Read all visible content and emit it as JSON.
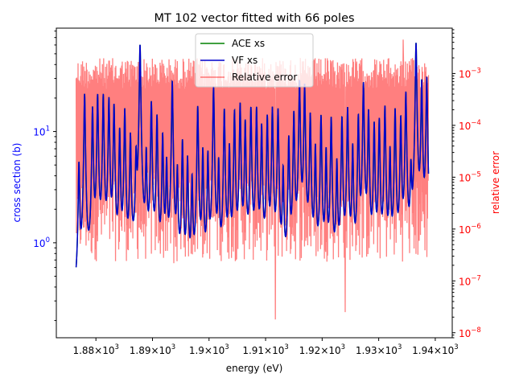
{
  "chart_data": {
    "type": "line",
    "title": "MT 102 vector fitted with 66 poles",
    "xlabel": "energy (eV)",
    "ylabel_left": "cross section (b)",
    "ylabel_right": "relative error",
    "xlim": [
      1873,
      1943
    ],
    "ylim_left": [
      0.14,
      85
    ],
    "ylim_right": [
      8e-09,
      0.0075
    ],
    "yscale_left": "log",
    "yscale_right": "log",
    "grid": false,
    "legend_position": "upper-center",
    "x_tick_values": [
      1880,
      1890,
      1900,
      1910,
      1920,
      1930,
      1940
    ],
    "x_tick_labels": [
      {
        "mant": "1.88",
        "exp": "3"
      },
      {
        "mant": "1.89",
        "exp": "3"
      },
      {
        "mant": "1.9",
        "exp": "3"
      },
      {
        "mant": "1.91",
        "exp": "3"
      },
      {
        "mant": "1.92",
        "exp": "3"
      },
      {
        "mant": "1.93",
        "exp": "3"
      },
      {
        "mant": "1.94",
        "exp": "3"
      }
    ],
    "y_left_tick_values": [
      1,
      10
    ],
    "y_left_tick_labels": [
      {
        "base": "10",
        "exp": "0"
      },
      {
        "base": "10",
        "exp": "1"
      }
    ],
    "y_right_tick_values": [
      1e-08,
      1e-07,
      1e-06,
      1e-05,
      0.0001,
      0.001
    ],
    "y_right_tick_labels": [
      {
        "base": "10",
        "exp": "−8"
      },
      {
        "base": "10",
        "exp": "−7"
      },
      {
        "base": "10",
        "exp": "−6"
      },
      {
        "base": "10",
        "exp": "−5"
      },
      {
        "base": "10",
        "exp": "−4"
      },
      {
        "base": "10",
        "exp": "−3"
      }
    ],
    "series": [
      {
        "name": "ACE xs",
        "axis": "left",
        "color": "#008000",
        "x_range": [
          1876.5,
          1938.8
        ],
        "baseline": 0.18,
        "resonances": [
          [
            1877.0,
            4.8
          ],
          [
            1878.0,
            21.5
          ],
          [
            1879.4,
            16.0
          ],
          [
            1880.3,
            21.0
          ],
          [
            1881.3,
            21.0
          ],
          [
            1882.3,
            19.5
          ],
          [
            1883.2,
            17.0
          ],
          [
            1884.2,
            10.0
          ],
          [
            1885.1,
            15.5
          ],
          [
            1886.1,
            9.0
          ],
          [
            1887.1,
            5.5
          ],
          [
            1887.8,
            60.0
          ],
          [
            1888.9,
            6.0
          ],
          [
            1889.8,
            18.0
          ],
          [
            1890.8,
            13.5
          ],
          [
            1891.8,
            9.0
          ],
          [
            1892.5,
            5.0
          ],
          [
            1893.5,
            28.0
          ],
          [
            1894.4,
            4.2
          ],
          [
            1895.3,
            8.0
          ],
          [
            1896.2,
            5.5
          ],
          [
            1897.0,
            3.5
          ],
          [
            1898.0,
            16.5
          ],
          [
            1898.9,
            6.5
          ],
          [
            1899.8,
            6.0
          ],
          [
            1900.8,
            25.0
          ],
          [
            1901.7,
            5.0
          ],
          [
            1902.7,
            15.5
          ],
          [
            1903.6,
            7.0
          ],
          [
            1904.5,
            15.0
          ],
          [
            1905.5,
            17.5
          ],
          [
            1906.4,
            12.0
          ],
          [
            1907.4,
            16.0
          ],
          [
            1908.4,
            16.0
          ],
          [
            1909.3,
            11.0
          ],
          [
            1910.3,
            13.5
          ],
          [
            1911.2,
            16.0
          ],
          [
            1912.2,
            15.5
          ],
          [
            1913.1,
            4.2
          ],
          [
            1914.1,
            8.5
          ],
          [
            1915.0,
            14.5
          ],
          [
            1916.0,
            28.0
          ],
          [
            1916.9,
            26.0
          ],
          [
            1917.9,
            14.0
          ],
          [
            1918.8,
            7.0
          ],
          [
            1919.8,
            13.5
          ],
          [
            1920.7,
            6.5
          ],
          [
            1921.6,
            13.0
          ],
          [
            1922.6,
            5.0
          ],
          [
            1923.5,
            13.0
          ],
          [
            1924.5,
            16.0
          ],
          [
            1925.4,
            7.0
          ],
          [
            1926.4,
            13.5
          ],
          [
            1927.3,
            27.0
          ],
          [
            1928.2,
            15.0
          ],
          [
            1929.2,
            11.5
          ],
          [
            1930.1,
            12.5
          ],
          [
            1931.1,
            16.5
          ],
          [
            1932.0,
            6.5
          ],
          [
            1932.9,
            15.5
          ],
          [
            1933.9,
            13.0
          ],
          [
            1934.8,
            22.0
          ],
          [
            1935.7,
            4.0
          ],
          [
            1936.6,
            62.0
          ],
          [
            1937.6,
            28.0
          ],
          [
            1938.5,
            30.0
          ]
        ]
      },
      {
        "name": "VF xs",
        "axis": "left",
        "color": "#0000cc",
        "note_same_as": "ACE xs"
      },
      {
        "name": "Relative error",
        "axis": "right",
        "color": "#ff0000",
        "opacity": 0.5,
        "x_range": [
          1876.5,
          1938.8
        ],
        "typical_high": 0.002,
        "typical_low": 1e-06,
        "min_value": 1.8e-08,
        "max_value": 0.0045
      }
    ]
  }
}
